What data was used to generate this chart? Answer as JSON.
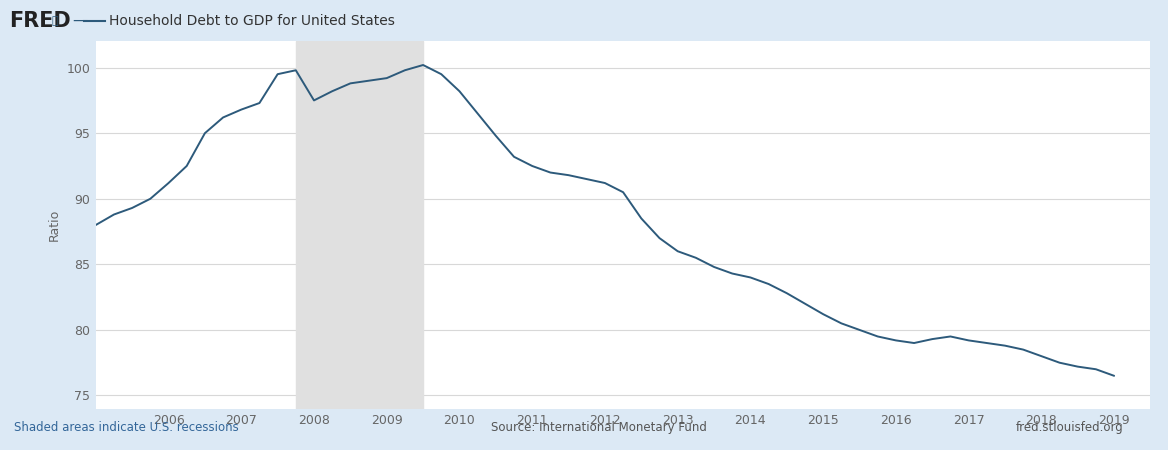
{
  "title": "Household Debt to GDP for United States",
  "ylabel": "Ratio",
  "background_color": "#dce9f5",
  "plot_background": "#ffffff",
  "line_color": "#2d5a7b",
  "line_width": 1.4,
  "recession_color": "#e0e0e0",
  "recession_alpha": 1.0,
  "recession_start": 2007.75,
  "recession_end": 2009.5,
  "ylim": [
    74,
    102
  ],
  "yticks": [
    75,
    80,
    85,
    90,
    95,
    100
  ],
  "footer_left": "Shaded areas indicate U.S. recessions",
  "footer_center": "Source: International Monetary Fund",
  "footer_right": "fred.stlouisfed.org",
  "years": [
    2005.0,
    2005.25,
    2005.5,
    2005.75,
    2006.0,
    2006.25,
    2006.5,
    2006.75,
    2007.0,
    2007.25,
    2007.5,
    2007.75,
    2008.0,
    2008.25,
    2008.5,
    2008.75,
    2009.0,
    2009.25,
    2009.5,
    2009.75,
    2010.0,
    2010.25,
    2010.5,
    2010.75,
    2011.0,
    2011.25,
    2011.5,
    2011.75,
    2012.0,
    2012.25,
    2012.5,
    2012.75,
    2013.0,
    2013.25,
    2013.5,
    2013.75,
    2014.0,
    2014.25,
    2014.5,
    2014.75,
    2015.0,
    2015.25,
    2015.5,
    2015.75,
    2016.0,
    2016.25,
    2016.5,
    2016.75,
    2017.0,
    2017.25,
    2017.5,
    2017.75,
    2018.0,
    2018.25,
    2018.5,
    2018.75,
    2019.0
  ],
  "values": [
    88.0,
    88.8,
    89.3,
    90.0,
    91.2,
    92.5,
    95.0,
    96.2,
    96.8,
    97.3,
    99.5,
    99.8,
    97.5,
    98.2,
    98.8,
    99.0,
    99.2,
    99.8,
    100.2,
    99.5,
    98.2,
    96.5,
    94.8,
    93.2,
    92.5,
    92.0,
    91.8,
    91.5,
    91.2,
    90.5,
    88.5,
    87.0,
    86.0,
    85.5,
    84.8,
    84.3,
    84.0,
    83.5,
    82.8,
    82.0,
    81.2,
    80.5,
    80.0,
    79.5,
    79.2,
    79.0,
    79.3,
    79.5,
    79.2,
    79.0,
    78.8,
    78.5,
    78.0,
    77.5,
    77.2,
    77.0,
    76.5
  ],
  "xlim_left": 2005.0,
  "xlim_right": 2019.5,
  "xticks": [
    2006,
    2007,
    2008,
    2009,
    2010,
    2011,
    2012,
    2013,
    2014,
    2015,
    2016,
    2017,
    2018,
    2019
  ]
}
